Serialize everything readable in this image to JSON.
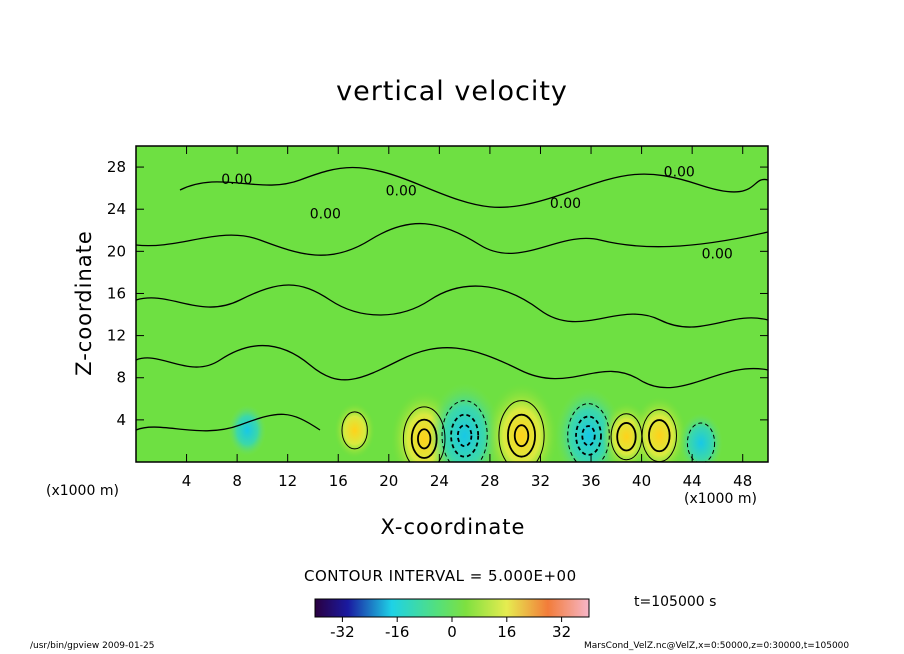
{
  "chart_data": {
    "type": "heatmap",
    "title": "vertical velocity",
    "xlabel": "X-coordinate",
    "ylabel": "Z-coordinate",
    "x_unit_label": "(x1000 m)",
    "x_range": [
      0,
      50
    ],
    "y_range": [
      0,
      30
    ],
    "x_ticks": [
      "4",
      "8",
      "12",
      "16",
      "20",
      "24",
      "28",
      "32",
      "36",
      "40",
      "44",
      "48"
    ],
    "y_ticks": [
      "4",
      "8",
      "12",
      "16",
      "20",
      "24",
      "28"
    ],
    "contour_labels": [
      "0.00",
      "0.00",
      "0.00",
      "0.00",
      "0.00",
      "0.00"
    ],
    "contour_interval_text": "CONTOUR INTERVAL = 5.000E+00",
    "colorbar": {
      "range": [
        -40,
        40
      ],
      "ticks": [
        "-32",
        "-16",
        "0",
        "16",
        "32"
      ]
    },
    "features": [
      {
        "x": 22.8,
        "z": 2.2,
        "value": 12
      },
      {
        "x": 26.0,
        "z": 2.5,
        "value": -14
      },
      {
        "x": 30.5,
        "z": 2.5,
        "value": 14
      },
      {
        "x": 35.8,
        "z": 2.5,
        "value": -12
      },
      {
        "x": 38.8,
        "z": 2.4,
        "value": 6
      },
      {
        "x": 41.4,
        "z": 2.5,
        "value": 8
      },
      {
        "x": 44.7,
        "z": 1.8,
        "value": -4
      },
      {
        "x": 17.3,
        "z": 3.0,
        "value": 3
      },
      {
        "x": 8.8,
        "z": 3.0,
        "value": -2
      }
    ],
    "time_label": "t=105000 s"
  },
  "footer": {
    "left": "/usr/bin/gpview   2009-01-25",
    "right": "MarsCond_VelZ.nc@VelZ,x=0:50000,z=0:30000,t=105000"
  }
}
